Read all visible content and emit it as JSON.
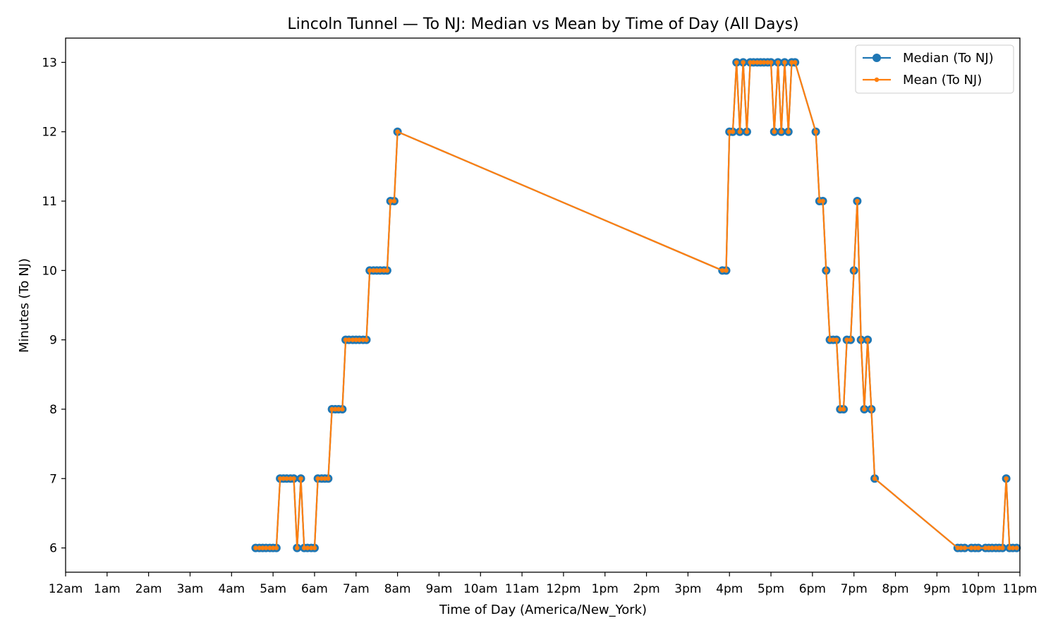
{
  "chart_data": {
    "type": "line",
    "title": "Lincoln Tunnel — To NJ: Median vs Mean by Time of Day (All Days)",
    "xlabel": "Time of Day (America/New_York)",
    "ylabel": "Minutes (To NJ)",
    "x_unit": "hours since midnight",
    "xlim": [
      0,
      23
    ],
    "ylim": [
      5.65,
      13.35
    ],
    "x_ticks": [
      0,
      1,
      2,
      3,
      4,
      5,
      6,
      7,
      8,
      9,
      10,
      11,
      12,
      13,
      14,
      15,
      16,
      17,
      18,
      19,
      20,
      21,
      22,
      23
    ],
    "x_tick_labels": [
      "12am",
      "1am",
      "2am",
      "3am",
      "4am",
      "5am",
      "6am",
      "7am",
      "8am",
      "9am",
      "10am",
      "11am",
      "12pm",
      "1pm",
      "2pm",
      "3pm",
      "4pm",
      "5pm",
      "6pm",
      "7pm",
      "8pm",
      "9pm",
      "10pm",
      "11pm"
    ],
    "y_ticks": [
      6,
      7,
      8,
      9,
      10,
      11,
      12,
      13
    ],
    "y_tick_labels": [
      "6",
      "7",
      "8",
      "9",
      "10",
      "11",
      "12",
      "13"
    ],
    "grid": false,
    "legend_position": "top-right",
    "x": [
      4.58,
      4.67,
      4.75,
      4.83,
      4.92,
      5.0,
      5.08,
      5.17,
      5.25,
      5.33,
      5.42,
      5.5,
      5.58,
      5.67,
      5.75,
      5.83,
      5.92,
      6.0,
      6.08,
      6.17,
      6.25,
      6.33,
      6.42,
      6.5,
      6.58,
      6.67,
      6.75,
      6.83,
      6.92,
      7.0,
      7.08,
      7.17,
      7.25,
      7.33,
      7.42,
      7.5,
      7.58,
      7.67,
      7.75,
      7.83,
      7.92,
      8.0,
      15.83,
      15.92,
      16.0,
      16.08,
      16.17,
      16.25,
      16.33,
      16.42,
      16.5,
      16.58,
      16.67,
      16.75,
      16.83,
      16.92,
      17.0,
      17.08,
      17.17,
      17.25,
      17.33,
      17.42,
      17.5,
      17.58,
      18.08,
      18.17,
      18.25,
      18.33,
      18.42,
      18.5,
      18.58,
      18.67,
      18.75,
      18.83,
      18.92,
      19.0,
      19.08,
      19.17,
      19.25,
      19.33,
      19.42,
      19.5,
      21.5,
      21.58,
      21.67,
      21.83,
      21.92,
      22.0,
      22.17,
      22.25,
      22.33,
      22.42,
      22.5,
      22.58,
      22.67,
      22.75,
      22.83,
      22.92
    ],
    "series": [
      {
        "name": "Median (To NJ)",
        "color": "#1f77b4",
        "marker": "circle",
        "values": [
          6,
          6,
          6,
          6,
          6,
          6,
          6,
          7,
          7,
          7,
          7,
          7,
          6,
          7,
          6,
          6,
          6,
          6,
          7,
          7,
          7,
          7,
          8,
          8,
          8,
          8,
          9,
          9,
          9,
          9,
          9,
          9,
          9,
          10,
          10,
          10,
          10,
          10,
          10,
          11,
          11,
          12,
          10,
          10,
          12,
          12,
          13,
          12,
          13,
          12,
          13,
          13,
          13,
          13,
          13,
          13,
          13,
          12,
          13,
          12,
          13,
          12,
          13,
          13,
          12,
          11,
          11,
          10,
          9,
          9,
          9,
          8,
          8,
          9,
          9,
          10,
          11,
          9,
          8,
          9,
          8,
          7,
          6,
          6,
          6,
          6,
          6,
          6,
          6,
          6,
          6,
          6,
          6,
          6,
          7,
          6,
          6,
          6
        ]
      },
      {
        "name": "Mean (To NJ)",
        "color": "#ff7f0e",
        "marker": "dot",
        "values": [
          6,
          6,
          6,
          6,
          6,
          6,
          6,
          7,
          7,
          7,
          7,
          7,
          6,
          7,
          6,
          6,
          6,
          6,
          7,
          7,
          7,
          7,
          8,
          8,
          8,
          8,
          9,
          9,
          9,
          9,
          9,
          9,
          9,
          10,
          10,
          10,
          10,
          10,
          10,
          11,
          11,
          12,
          10,
          10,
          12,
          12,
          13,
          12,
          13,
          12,
          13,
          13,
          13,
          13,
          13,
          13,
          13,
          12,
          13,
          12,
          13,
          12,
          13,
          13,
          12,
          11,
          11,
          10,
          9,
          9,
          9,
          8,
          8,
          9,
          9,
          10,
          11,
          9,
          8,
          9,
          8,
          7,
          6,
          6,
          6,
          6,
          6,
          6,
          6,
          6,
          6,
          6,
          6,
          6,
          7,
          6,
          6,
          6
        ]
      }
    ]
  }
}
